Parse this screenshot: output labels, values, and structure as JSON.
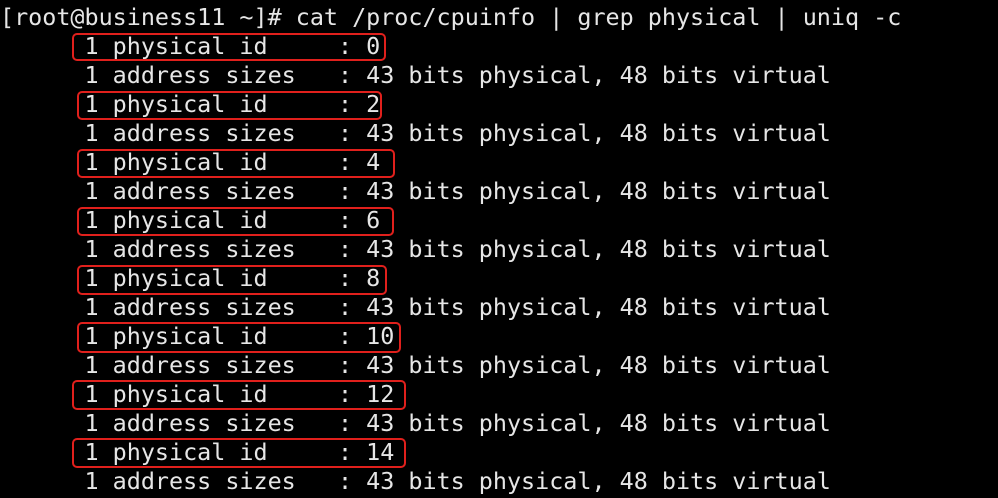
{
  "terminal": {
    "prompt": "[root@business11 ~]# ",
    "command": "cat /proc/cpuinfo | grep physical | uniq -c",
    "output": [
      "      1 physical id     : 0",
      "      1 address sizes   : 43 bits physical, 48 bits virtual",
      "      1 physical id     : 2",
      "      1 address sizes   : 43 bits physical, 48 bits virtual",
      "      1 physical id     : 4",
      "      1 address sizes   : 43 bits physical, 48 bits virtual",
      "      1 physical id     : 6",
      "      1 address sizes   : 43 bits physical, 48 bits virtual",
      "      1 physical id     : 8",
      "      1 address sizes   : 43 bits physical, 48 bits virtual",
      "      1 physical id     : 10",
      "      1 address sizes   : 43 bits physical, 48 bits virtual",
      "      1 physical id     : 12",
      "      1 address sizes   : 43 bits physical, 48 bits virtual",
      "      1 physical id     : 14",
      "      1 address sizes   : 43 bits physical, 48 bits virtual"
    ]
  },
  "colors": {
    "text": "#e6e6e6",
    "background": "#000000",
    "highlight": "#e0201c"
  }
}
